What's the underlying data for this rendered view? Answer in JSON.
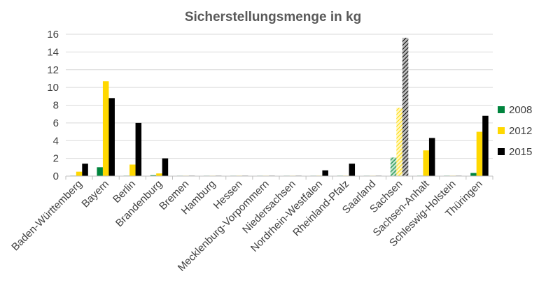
{
  "chart_data": {
    "type": "bar",
    "title": "Sicherstellungsmenge in kg",
    "xlabel": "",
    "ylabel": "",
    "ylim": [
      0,
      16
    ],
    "yticks": [
      0,
      2,
      4,
      6,
      8,
      10,
      12,
      14,
      16
    ],
    "grid": true,
    "legend_position": "right",
    "categories": [
      "Baden-Württemberg",
      "Bayern",
      "Berlin",
      "Brandenburg",
      "Bremen",
      "Hamburg",
      "Hessen",
      "Mecklenburg-Vorpommern",
      "Niedersachsen",
      "Nordrhein-Westfalen",
      "Rheinland-Pfalz",
      "Saarland",
      "Sachsen",
      "Sachsen-Anhalt",
      "Schleswig-Holstein",
      "Thüringen"
    ],
    "series": [
      {
        "name": "2008",
        "color": "#00843d",
        "values": [
          0.05,
          1.0,
          0.05,
          0.1,
          0.02,
          0.02,
          0.02,
          0.02,
          0.02,
          0.02,
          0.05,
          0.02,
          2.1,
          0.05,
          0.05,
          0.35
        ]
      },
      {
        "name": "2012",
        "color": "#ffd800",
        "values": [
          0.5,
          10.7,
          1.3,
          0.3,
          0.02,
          0.02,
          0.05,
          0.02,
          0.02,
          0.05,
          0.05,
          0.02,
          7.7,
          2.9,
          0.05,
          5.0
        ]
      },
      {
        "name": "2015",
        "color": "#000000",
        "values": [
          1.4,
          8.8,
          6.0,
          2.0,
          0.05,
          0.05,
          0.05,
          0.05,
          0.05,
          0.65,
          1.4,
          0.05,
          15.6,
          4.3,
          0.05,
          6.8
        ]
      }
    ],
    "hatched_category": "Sachsen"
  }
}
